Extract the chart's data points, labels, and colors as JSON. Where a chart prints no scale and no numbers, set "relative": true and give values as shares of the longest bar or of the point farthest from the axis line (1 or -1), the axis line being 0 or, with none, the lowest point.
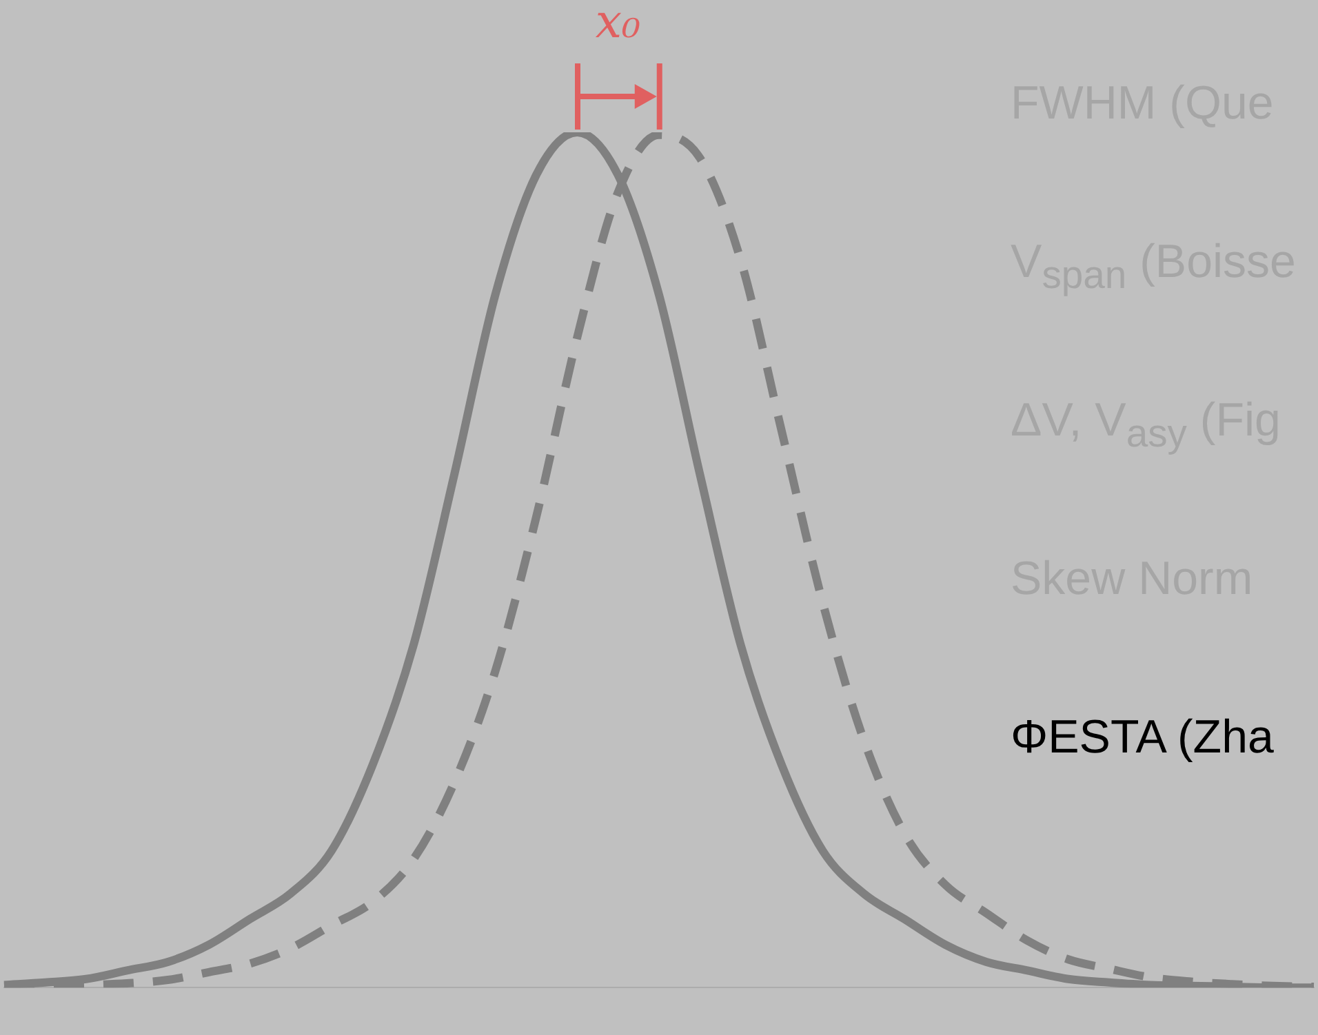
{
  "chart_data": {
    "type": "line",
    "relative": true,
    "categories": [
      null,
      null,
      null,
      null,
      null,
      null,
      null,
      null,
      null,
      null,
      null,
      null,
      null,
      null,
      null,
      null,
      null,
      null,
      null,
      null,
      null,
      null,
      null,
      null,
      null,
      null,
      null,
      null,
      null,
      null,
      null,
      null,
      null
    ],
    "series": [
      {
        "color": "#808080",
        "line_style": "solid",
        "values": [
          0.003,
          0.006,
          0.01,
          0.02,
          0.03,
          0.05,
          0.08,
          0.11,
          0.16,
          0.26,
          0.4,
          0.6,
          0.81,
          0.95,
          1,
          0.95,
          0.81,
          0.6,
          0.4,
          0.26,
          0.16,
          0.11,
          0.08,
          0.05,
          0.03,
          0.02,
          0.01,
          0.006,
          0.003,
          0.002,
          0.001,
          0,
          0
        ]
      },
      {
        "color": "#808080",
        "line_style": "dashed",
        "values": [
          0.001,
          0.002,
          0.003,
          0.005,
          0.009,
          0.018,
          0.028,
          0.046,
          0.073,
          0.1,
          0.15,
          0.24,
          0.37,
          0.55,
          0.76,
          0.93,
          0.997,
          0.97,
          0.85,
          0.65,
          0.45,
          0.29,
          0.18,
          0.12,
          0.087,
          0.055,
          0.033,
          0.022,
          0.012,
          0.007,
          0.004,
          0.002,
          0.001
        ]
      }
    ],
    "annotations": [
      "x₀",
      "FWHM (Que",
      "V$_{span}$ (Boisse",
      "ΔV, V$_{asy}$ (Fig",
      "Skew Norm",
      "ΦESTA (Zha"
    ]
  }
}
